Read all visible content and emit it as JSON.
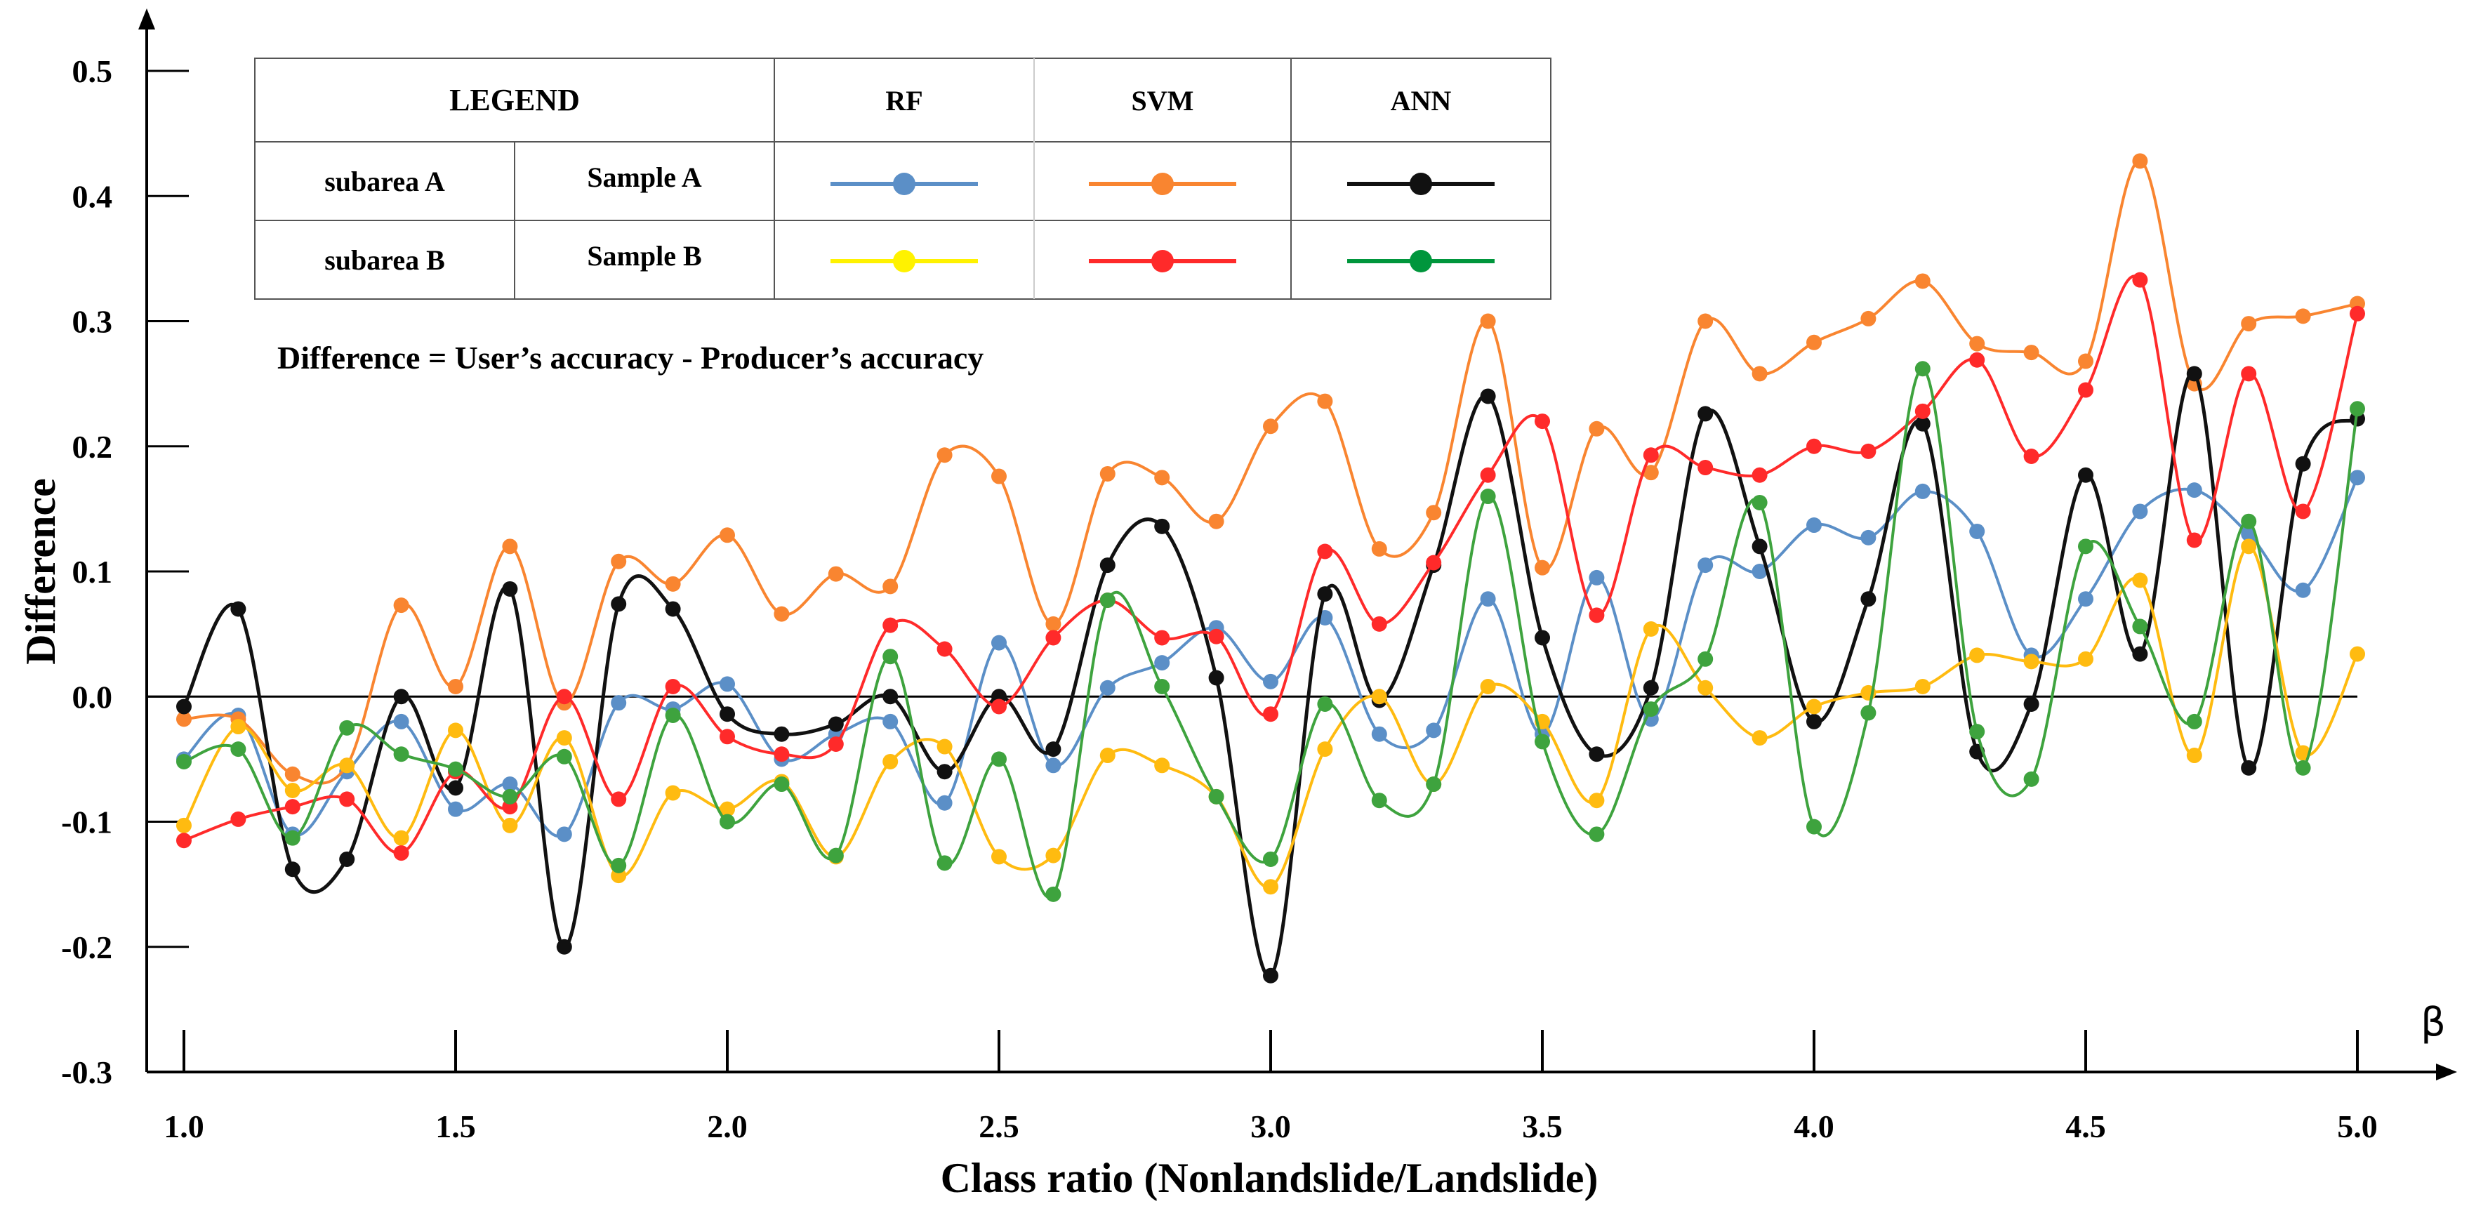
{
  "chart_data": {
    "type": "line",
    "xlabel": "Class ratio (Nonlandslide/Landslide)",
    "ylabel": "Difference",
    "x_axis_symbol": "β",
    "annotation": "Difference = User’s accuracy - Producer’s accuracy",
    "xlim": [
      1.0,
      5.0
    ],
    "ylim": [
      -0.3,
      0.5
    ],
    "x_ticks": [
      "1.0",
      "1.5",
      "2.0",
      "2.5",
      "3.0",
      "3.5",
      "4.0",
      "4.5",
      "5.0"
    ],
    "y_ticks": [
      "0.5",
      "0.4",
      "0.3",
      "0.2",
      "0.1",
      "0.0",
      "-0.1",
      "-0.2",
      "-0.3"
    ],
    "grid": false,
    "reference_line": 0.0,
    "x": [
      1.0,
      1.1,
      1.2,
      1.3,
      1.4,
      1.5,
      1.6,
      1.7,
      1.8,
      1.9,
      2.0,
      2.1,
      2.2,
      2.3,
      2.4,
      2.5,
      2.6,
      2.7,
      2.8,
      2.9,
      3.0,
      3.1,
      3.2,
      3.3,
      3.4,
      3.5,
      3.6,
      3.7,
      3.8,
      3.9,
      4.0,
      4.1,
      4.2,
      4.3,
      4.4,
      4.5,
      4.6,
      4.7,
      4.8,
      4.9,
      5.0
    ],
    "legend": {
      "placement": "top-left",
      "title": "LEGEND",
      "columns": [
        "RF",
        "SVM",
        "ANN"
      ],
      "rows": [
        {
          "subarea": "subarea A",
          "sample": "Sample A"
        },
        {
          "subarea": "subarea B",
          "sample": "Sample B"
        }
      ]
    },
    "series": [
      {
        "key": "rf_a",
        "model": "RF",
        "row": 0,
        "color": "#5b8fc7",
        "values": [
          -0.05,
          -0.015,
          -0.11,
          -0.06,
          -0.02,
          -0.09,
          -0.07,
          -0.11,
          -0.005,
          -0.01,
          0.01,
          -0.05,
          -0.03,
          -0.02,
          -0.085,
          0.043,
          -0.055,
          0.007,
          0.027,
          0.055,
          0.012,
          0.063,
          -0.03,
          -0.027,
          0.078,
          -0.03,
          0.095,
          -0.018,
          0.105,
          0.1,
          0.137,
          0.127,
          0.164,
          0.132,
          0.033,
          0.078,
          0.148,
          0.165,
          0.13,
          0.085,
          0.175
        ]
      },
      {
        "key": "svm_a",
        "model": "SVM",
        "row": 0,
        "color": "#f98530",
        "values": [
          -0.018,
          -0.018,
          -0.062,
          -0.055,
          0.073,
          0.008,
          0.12,
          -0.005,
          0.108,
          0.09,
          0.129,
          0.066,
          0.098,
          0.088,
          0.193,
          0.176,
          0.058,
          0.178,
          0.175,
          0.14,
          0.216,
          0.236,
          0.118,
          0.147,
          0.3,
          0.103,
          0.214,
          0.179,
          0.3,
          0.258,
          0.283,
          0.302,
          0.332,
          0.282,
          0.275,
          0.268,
          0.428,
          0.25,
          0.298,
          0.304,
          0.314
        ]
      },
      {
        "key": "ann_a",
        "model": "ANN",
        "row": 0,
        "color": "#111111",
        "values": [
          -0.008,
          0.07,
          -0.138,
          -0.13,
          0.0,
          -0.073,
          0.086,
          -0.2,
          0.074,
          0.07,
          -0.014,
          -0.03,
          -0.022,
          0.0,
          -0.06,
          0.0,
          -0.042,
          0.105,
          0.136,
          0.015,
          -0.223,
          0.082,
          -0.003,
          0.105,
          0.24,
          0.047,
          -0.046,
          0.007,
          0.226,
          0.12,
          -0.02,
          0.078,
          0.218,
          -0.044,
          -0.006,
          0.177,
          0.034,
          0.258,
          -0.057,
          0.186,
          0.222
        ]
      },
      {
        "key": "rf_b",
        "model": "RF",
        "row": 1,
        "color": "#ffbb10",
        "legend_color": "#fff200",
        "values": [
          -0.103,
          -0.024,
          -0.075,
          -0.055,
          -0.113,
          -0.027,
          -0.103,
          -0.033,
          -0.143,
          -0.077,
          -0.09,
          -0.068,
          -0.128,
          -0.052,
          -0.04,
          -0.128,
          -0.127,
          -0.047,
          -0.055,
          -0.08,
          -0.152,
          -0.042,
          0.0,
          -0.07,
          0.008,
          -0.02,
          -0.083,
          0.054,
          0.007,
          -0.033,
          -0.008,
          0.003,
          0.008,
          0.033,
          0.028,
          0.03,
          0.093,
          -0.047,
          0.12,
          -0.045,
          0.034
        ]
      },
      {
        "key": "svm_b",
        "model": "SVM",
        "row": 1,
        "color": "#ff2a2a",
        "values": [
          -0.115,
          -0.098,
          -0.088,
          -0.082,
          -0.125,
          -0.06,
          -0.088,
          0.0,
          -0.082,
          0.008,
          -0.032,
          -0.046,
          -0.038,
          0.057,
          0.038,
          -0.008,
          0.047,
          0.077,
          0.047,
          0.048,
          -0.014,
          0.116,
          0.058,
          0.107,
          0.177,
          0.22,
          0.065,
          0.193,
          0.183,
          0.177,
          0.2,
          0.196,
          0.228,
          0.269,
          0.192,
          0.245,
          0.333,
          0.125,
          0.258,
          0.148,
          0.306
        ]
      },
      {
        "key": "ann_b",
        "model": "ANN",
        "row": 1,
        "color": "#3ea33e",
        "legend_color": "#00963c",
        "values": [
          -0.052,
          -0.042,
          -0.113,
          -0.025,
          -0.046,
          -0.058,
          -0.08,
          -0.048,
          -0.135,
          -0.015,
          -0.1,
          -0.07,
          -0.127,
          0.032,
          -0.133,
          -0.05,
          -0.158,
          0.077,
          0.008,
          -0.08,
          -0.13,
          -0.006,
          -0.083,
          -0.07,
          0.16,
          -0.036,
          -0.11,
          -0.01,
          0.03,
          0.155,
          -0.104,
          -0.013,
          0.262,
          -0.028,
          -0.066,
          0.12,
          0.056,
          -0.02,
          0.14,
          -0.057,
          0.23
        ]
      }
    ]
  }
}
